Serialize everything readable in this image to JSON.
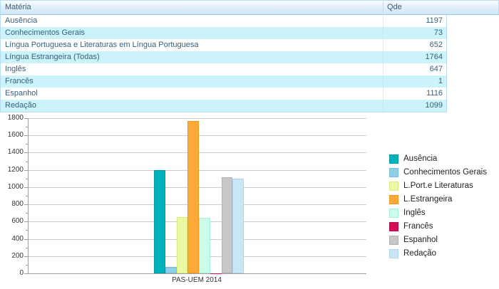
{
  "table": {
    "columns": [
      "Matéria",
      "Qde"
    ],
    "rows": [
      {
        "materia": "Ausência",
        "qde": 1197
      },
      {
        "materia": "Conhecimentos Gerais",
        "qde": 73
      },
      {
        "materia": "Língua Portuguesa e Literaturas em Língua Portuguesa",
        "qde": 652
      },
      {
        "materia": "Língua Estrangeira (Todas)",
        "qde": 1764
      },
      {
        "materia": "Inglês",
        "qde": 647
      },
      {
        "materia": "Francês",
        "qde": 1
      },
      {
        "materia": "Espanhol",
        "qde": 1116
      },
      {
        "materia": "Redação",
        "qde": 1099
      }
    ]
  },
  "chart_data": {
    "type": "bar",
    "title": "",
    "xlabel": "",
    "ylabel": "",
    "categories": [
      "PAS-UEM 2014"
    ],
    "series": [
      {
        "name": "Ausência",
        "values": [
          1197
        ],
        "color": "#00b2bc",
        "border_color": "#009aa6"
      },
      {
        "name": "Conhecimentos Gerais",
        "values": [
          73
        ],
        "color": "#8fd0e7",
        "border_color": "#72c0dc"
      },
      {
        "name": "L.Port.e Literaturas",
        "values": [
          652
        ],
        "color": "#ebf9a3",
        "border_color": "#d6ee7d"
      },
      {
        "name": "L.Estrangeira",
        "values": [
          1764
        ],
        "color": "#fba938",
        "border_color": "#f7941d"
      },
      {
        "name": "Inglês",
        "values": [
          647
        ],
        "color": "#c9fcea",
        "border_color": "#a3f1d7"
      },
      {
        "name": "Francês",
        "values": [
          1
        ],
        "color": "#d50f57",
        "border_color": "#b70c49"
      },
      {
        "name": "Espanhol",
        "values": [
          1116
        ],
        "color": "#c7c7c7",
        "border_color": "#b0b0b0"
      },
      {
        "name": "Redação",
        "values": [
          1099
        ],
        "color": "#c9e5f6",
        "border_color": "#aed4ee"
      }
    ],
    "ylim": [
      0,
      1800
    ],
    "ytick_step": 200,
    "yminor_step": 100,
    "grid": true,
    "legend_position": "right"
  }
}
